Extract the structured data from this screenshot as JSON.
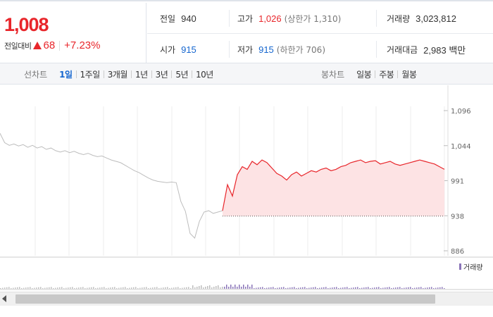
{
  "quote": {
    "price": "1,008",
    "change_label": "전일대비",
    "change_value": "68",
    "change_rate": "+7.23%",
    "up_color": "#e8262b",
    "down_color": "#1566cf"
  },
  "info": {
    "prev_label": "전일",
    "prev_value": "940",
    "high_label": "고가",
    "high_value": "1,026",
    "upper_limit": "(상한가 1,310)",
    "volume_label": "거래량",
    "volume_value": "3,023,812",
    "open_label": "시가",
    "open_value": "915",
    "low_label": "저가",
    "low_value": "915",
    "lower_limit": "(하한가 706)",
    "amount_label": "거래대금",
    "amount_value": "2,983 백만"
  },
  "toolbar": {
    "line_chart_title": "선차트",
    "periods": [
      "1일",
      "1주일",
      "3개월",
      "1년",
      "3년",
      "5년",
      "10년"
    ],
    "active_period": "1일",
    "candle_chart_title": "봉차트",
    "candles": [
      "일봉",
      "주봉",
      "월봉"
    ]
  },
  "chart_data": {
    "type": "line",
    "y_ticks": [
      "1,096",
      "1,044",
      "991",
      "938",
      "886"
    ],
    "ylim": [
      886,
      1096
    ],
    "baseline": 938,
    "volume_legend": "거래량",
    "series": [
      {
        "values": [
          1062,
          1048,
          1044,
          1046,
          1043,
          1045,
          1041,
          1044,
          1040,
          1042,
          1038,
          1040,
          1036,
          1034,
          1036,
          1033,
          1035,
          1032,
          1030,
          1032,
          1029,
          1027,
          1028,
          1025,
          1022,
          1020,
          1018,
          1014,
          1010,
          1006,
          1003,
          999,
          995,
          992,
          990,
          989,
          988,
          989,
          988,
          960,
          945,
          912,
          905,
          930,
          944,
          946,
          942,
          944,
          946
        ]
      },
      {
        "values": [
          946,
          985,
          968,
          1000,
          1012,
          1008,
          1020,
          1015,
          1022,
          1018,
          1010,
          1002,
          998,
          992,
          1000,
          1004,
          998,
          1002,
          1006,
          1004,
          1008,
          1010,
          1006,
          1008,
          1012,
          1014,
          1018,
          1020,
          1022,
          1018,
          1020,
          1021,
          1016,
          1018,
          1020,
          1016,
          1014,
          1016,
          1018,
          1020,
          1022,
          1020,
          1018,
          1016,
          1012,
          1008
        ]
      }
    ]
  }
}
